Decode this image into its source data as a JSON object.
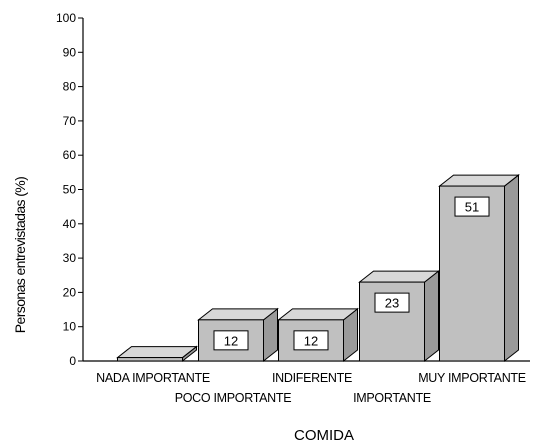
{
  "chart_data": {
    "type": "bar",
    "style": "3d",
    "categories": [
      "NADA IMPORTANTE",
      "POCO IMPORTANTE",
      "INDIFERENTE",
      "IMPORTANTE",
      "MUY IMPORTANTE"
    ],
    "values": [
      1,
      12,
      12,
      23,
      51
    ],
    "data_labels": [
      "",
      "12",
      "12",
      "23",
      "51"
    ],
    "title": "",
    "xlabel": "COMIDA",
    "ylabel": "Personas entrevistadas (%)",
    "ylim": [
      0,
      100
    ],
    "yticks": [
      0,
      10,
      20,
      30,
      40,
      50,
      60,
      70,
      80,
      90,
      100
    ],
    "grid": false,
    "legend": "none",
    "bar_color": "#c0c0c0",
    "bar_top_color": "#d8d8d8",
    "bar_side_color": "#9a9a9a"
  }
}
